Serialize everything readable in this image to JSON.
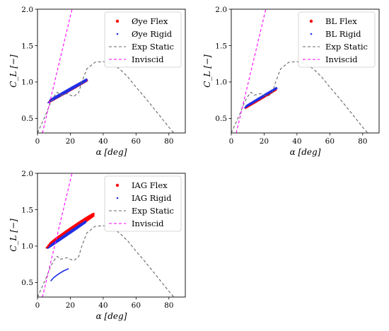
{
  "chart_data": [
    {
      "type": "scatter",
      "panel": "Øye",
      "xlabel": "α [deg]",
      "ylabel": "C_L [−]",
      "xlim": [
        0,
        90
      ],
      "ylim": [
        0.3,
        2.0
      ],
      "xticks": [
        "0",
        "20",
        "40",
        "60",
        "80"
      ],
      "yticks": [
        "0.5",
        "1.0",
        "1.5",
        "2.0"
      ],
      "legend_position": "top-right",
      "series": [
        {
          "name": "Øye Flex",
          "kind": "loop",
          "color": "#ff0000",
          "loops": [
            {
              "cx": 18.5,
              "cy": 0.87,
              "a": 12.5,
              "b": 0.045,
              "angle": 0.4
            },
            {
              "cx": 19,
              "cy": 0.88,
              "a": 12.5,
              "b": 0.07,
              "angle": 0.4
            }
          ]
        },
        {
          "name": "Øye Rigid",
          "kind": "loop",
          "color": "#1f2ee6",
          "loops": [
            {
              "cx": 18.5,
              "cy": 0.87,
              "a": 12.8,
              "b": 0.04,
              "angle": 0.4
            },
            {
              "cx": 19,
              "cy": 0.9,
              "a": 12.2,
              "b": 0.06,
              "angle": 0.4
            }
          ]
        },
        {
          "name": "Exp Static",
          "kind": "line",
          "dash": "dashed",
          "color": "#666666",
          "x": [
            0,
            5,
            8,
            10,
            12,
            14,
            16,
            18,
            20,
            22,
            25,
            27,
            30,
            35,
            40,
            45,
            50,
            55,
            60,
            65,
            70,
            75,
            80,
            83
          ],
          "y": [
            0.3,
            0.55,
            0.72,
            0.8,
            0.86,
            0.82,
            0.83,
            0.84,
            0.82,
            0.8,
            0.85,
            1.0,
            1.18,
            1.27,
            1.28,
            1.25,
            1.18,
            1.07,
            0.93,
            0.8,
            0.66,
            0.52,
            0.38,
            0.3
          ]
        },
        {
          "name": "Inviscid",
          "kind": "line",
          "dash": "dashed",
          "color": "#ff00ff",
          "x": [
            3,
            21
          ],
          "y": [
            0.3,
            2.0
          ]
        }
      ]
    },
    {
      "type": "scatter",
      "panel": "BL",
      "xlabel": "α [deg]",
      "ylabel": "C_L [−]",
      "xlim": [
        0,
        90
      ],
      "ylim": [
        0.3,
        2.0
      ],
      "xticks": [
        "0",
        "20",
        "40",
        "60",
        "80"
      ],
      "yticks": [
        "0.5",
        "1.0",
        "1.5",
        "2.0"
      ],
      "legend_position": "top-right",
      "series": [
        {
          "name": "BL Flex",
          "kind": "loop",
          "color": "#ff0000",
          "loops": [
            {
              "cx": 18,
              "cy": 0.77,
              "a": 10.5,
              "b": 0.04,
              "angle": 0.42
            }
          ]
        },
        {
          "name": "BL Rigid",
          "kind": "loop",
          "color": "#1f2ee6",
          "loops": [
            {
              "cx": 18,
              "cy": 0.78,
              "a": 11,
              "b": 0.035,
              "angle": 0.42
            },
            {
              "cx": 18.5,
              "cy": 0.8,
              "a": 10.2,
              "b": 0.05,
              "angle": 0.42
            }
          ]
        },
        {
          "name": "Exp Static",
          "kind": "line",
          "dash": "dashed",
          "color": "#666666",
          "x": [
            0,
            5,
            8,
            10,
            12,
            14,
            16,
            18,
            20,
            22,
            25,
            27,
            30,
            35,
            40,
            45,
            50,
            55,
            60,
            65,
            70,
            75,
            80,
            83
          ],
          "y": [
            0.3,
            0.55,
            0.72,
            0.8,
            0.86,
            0.82,
            0.83,
            0.84,
            0.82,
            0.8,
            0.85,
            1.0,
            1.18,
            1.27,
            1.28,
            1.25,
            1.18,
            1.07,
            0.93,
            0.8,
            0.66,
            0.52,
            0.38,
            0.3
          ]
        },
        {
          "name": "Inviscid",
          "kind": "line",
          "dash": "dashed",
          "color": "#ff00ff",
          "x": [
            3,
            21
          ],
          "y": [
            0.3,
            2.0
          ]
        }
      ]
    },
    {
      "type": "scatter",
      "panel": "IAG",
      "xlabel": "α [deg]",
      "ylabel": "C_L [−]",
      "xlim": [
        0,
        90
      ],
      "ylim": [
        0.3,
        2.0
      ],
      "xticks": [
        "0",
        "20",
        "40",
        "60",
        "80"
      ],
      "yticks": [
        "0.5",
        "1.0",
        "1.5",
        "2.0"
      ],
      "legend_position": "top-right",
      "series": [
        {
          "name": "IAG Flex",
          "kind": "loop",
          "color": "#ff0000",
          "loops": [
            {
              "cx": 20,
              "cy": 1.2,
              "a": 16,
              "b": 0.1,
              "angle": 0.47
            },
            {
              "cx": 20.5,
              "cy": 1.22,
              "a": 15.5,
              "b": 0.16,
              "angle": 0.47
            },
            {
              "cx": 21,
              "cy": 1.24,
              "a": 15,
              "b": 0.22,
              "angle": 0.47
            }
          ]
        },
        {
          "name": "IAG Rigid",
          "kind": "loop",
          "color": "#1f2ee6",
          "loops": [
            {
              "cx": 18,
              "cy": 1.15,
              "a": 13,
              "b": 0.05,
              "angle": 0.47
            },
            {
              "cx": 18.5,
              "cy": 1.17,
              "a": 12.5,
              "b": 0.09,
              "angle": 0.47
            },
            {
              "cx": 19,
              "cy": 1.18,
              "a": 12,
              "b": 0.13,
              "angle": 0.47
            }
          ],
          "tail": {
            "x": [
              8,
              10,
              13,
              16,
              19
            ],
            "y": [
              0.52,
              0.57,
              0.62,
              0.66,
              0.69
            ]
          }
        },
        {
          "name": "Exp Static",
          "kind": "line",
          "dash": "dashed",
          "color": "#666666",
          "x": [
            0,
            5,
            8,
            10,
            12,
            14,
            16,
            18,
            20,
            22,
            25,
            27,
            30,
            35,
            40,
            45,
            50,
            55,
            60,
            65,
            70,
            75,
            80,
            83
          ],
          "y": [
            0.3,
            0.55,
            0.72,
            0.8,
            0.86,
            0.82,
            0.83,
            0.84,
            0.82,
            0.8,
            0.85,
            1.0,
            1.18,
            1.27,
            1.28,
            1.25,
            1.18,
            1.07,
            0.93,
            0.8,
            0.66,
            0.52,
            0.38,
            0.3
          ]
        },
        {
          "name": "Inviscid",
          "kind": "line",
          "dash": "dashed",
          "color": "#ff00ff",
          "x": [
            3,
            21
          ],
          "y": [
            0.3,
            2.0
          ]
        }
      ]
    }
  ]
}
